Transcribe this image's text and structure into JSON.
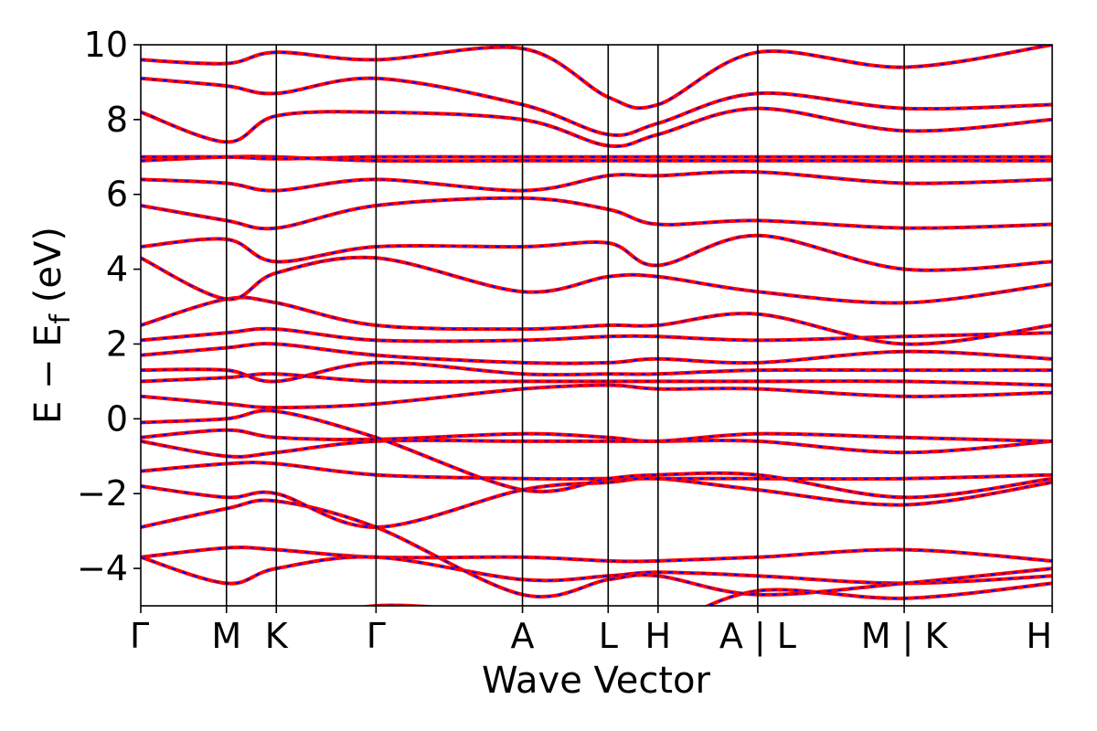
{
  "chart_data": {
    "type": "line",
    "title": "",
    "xlabel": "Wave Vector",
    "ylabel_main": "E − E",
    "ylabel_sub": "f",
    "ylabel_tail": " (eV)",
    "ylim": [
      -5,
      10
    ],
    "yticks": [
      {
        "value": 10,
        "label": "10"
      },
      {
        "value": 8,
        "label": "8"
      },
      {
        "value": 6,
        "label": "6"
      },
      {
        "value": 4,
        "label": "4"
      },
      {
        "value": 2,
        "label": "2"
      },
      {
        "value": 0,
        "label": "0"
      },
      {
        "value": -2,
        "label": "−2"
      },
      {
        "value": -4,
        "label": "−4"
      }
    ],
    "kpath": [
      "Γ",
      "M",
      "K",
      "Γ",
      "A",
      "L",
      "H",
      "A | L",
      "M | K",
      "H"
    ],
    "kpath_breaks": [
      7,
      8
    ],
    "segment_lengths": [
      0.55,
      0.32,
      0.64,
      0.94,
      0.55,
      0.32,
      0.64,
      0.94,
      0.95
    ],
    "grid": false,
    "legend": "none",
    "colors": {
      "primary": "#ff0000",
      "secondary": "#0000ff",
      "axis": "#000000"
    },
    "series": [
      {
        "values": [
          [
            0,
            -5.9
          ],
          [
            1,
            -5.6
          ],
          [
            2,
            -5.7
          ],
          [
            3,
            -5.0
          ],
          [
            4,
            -5.3
          ],
          [
            5,
            -5.8
          ],
          [
            6,
            -5.6
          ],
          [
            7,
            -4.6
          ],
          [
            8,
            -4.8
          ],
          [
            9,
            -4.4
          ]
        ]
      },
      {
        "values": [
          [
            0,
            -3.7
          ],
          [
            1,
            -3.45
          ],
          [
            2,
            -3.5
          ],
          [
            3,
            -3.7
          ],
          [
            4,
            -3.7
          ],
          [
            5,
            -3.8
          ],
          [
            6,
            -3.8
          ],
          [
            7,
            -3.7
          ],
          [
            8,
            -3.5
          ],
          [
            9,
            -3.8
          ]
        ]
      },
      {
        "values": [
          [
            0,
            -3.7
          ],
          [
            1,
            -4.4
          ],
          [
            2,
            -4.0
          ],
          [
            3,
            -3.7
          ],
          [
            4,
            -4.3
          ],
          [
            5,
            -4.2
          ],
          [
            6,
            -4.1
          ],
          [
            7,
            -4.2
          ],
          [
            8,
            -4.4
          ],
          [
            9,
            -4.2
          ]
        ]
      },
      {
        "values": [
          [
            0,
            -2.9
          ],
          [
            1,
            -2.4
          ],
          [
            2,
            -2.2
          ],
          [
            3,
            -2.9
          ],
          [
            4,
            -4.7
          ],
          [
            5,
            -4.3
          ],
          [
            6,
            -4.2
          ],
          [
            7,
            -4.7
          ],
          [
            8,
            -4.4
          ],
          [
            9,
            -4.0
          ]
        ]
      },
      {
        "values": [
          [
            0,
            -1.8
          ],
          [
            1,
            -2.1
          ],
          [
            2,
            -2.0
          ],
          [
            3,
            -2.9
          ],
          [
            4,
            -1.9
          ],
          [
            5,
            -1.7
          ],
          [
            6,
            -1.6
          ],
          [
            7,
            -1.9
          ],
          [
            8,
            -2.3
          ],
          [
            9,
            -1.7
          ]
        ]
      },
      {
        "values": [
          [
            0,
            -1.4
          ],
          [
            1,
            -1.2
          ],
          [
            2,
            -1.2
          ],
          [
            3,
            -1.5
          ],
          [
            4,
            -1.6
          ],
          [
            5,
            -1.6
          ],
          [
            6,
            -1.6
          ],
          [
            7,
            -1.6
          ],
          [
            8,
            -1.6
          ],
          [
            9,
            -1.5
          ]
        ]
      },
      {
        "values": [
          [
            0,
            -0.6
          ],
          [
            1,
            -1.0
          ],
          [
            2,
            -0.9
          ],
          [
            3,
            -0.6
          ],
          [
            4,
            -0.6
          ],
          [
            5,
            -0.6
          ],
          [
            6,
            -0.6
          ],
          [
            7,
            -0.6
          ],
          [
            8,
            -0.9
          ],
          [
            9,
            -0.6
          ]
        ]
      },
      {
        "values": [
          [
            0,
            -0.5
          ],
          [
            1,
            -0.3
          ],
          [
            2,
            -0.5
          ],
          [
            3,
            -0.55
          ],
          [
            4,
            -0.4
          ],
          [
            5,
            -0.5
          ],
          [
            6,
            -0.6
          ],
          [
            7,
            -0.4
          ],
          [
            8,
            -0.5
          ],
          [
            9,
            -0.6
          ]
        ]
      },
      {
        "values": [
          [
            0,
            -0.1
          ],
          [
            1,
            0.0
          ],
          [
            2,
            0.2
          ],
          [
            3,
            -0.5
          ],
          [
            4,
            -1.9
          ],
          [
            5,
            -1.6
          ],
          [
            6,
            -1.5
          ],
          [
            7,
            -1.5
          ],
          [
            8,
            -2.1
          ],
          [
            9,
            -1.6
          ]
        ]
      },
      {
        "values": [
          [
            0,
            0.6
          ],
          [
            1,
            0.4
          ],
          [
            2,
            0.3
          ],
          [
            3,
            0.4
          ],
          [
            4,
            0.8
          ],
          [
            5,
            0.9
          ],
          [
            6,
            0.8
          ],
          [
            7,
            0.8
          ],
          [
            8,
            0.6
          ],
          [
            9,
            0.7
          ]
        ]
      },
      {
        "values": [
          [
            0,
            1.0
          ],
          [
            1,
            1.1
          ],
          [
            2,
            1.2
          ],
          [
            3,
            1.0
          ],
          [
            4,
            1.0
          ],
          [
            5,
            1.0
          ],
          [
            6,
            1.0
          ],
          [
            7,
            1.0
          ],
          [
            8,
            1.0
          ],
          [
            9,
            0.9
          ]
        ]
      },
      {
        "values": [
          [
            0,
            1.3
          ],
          [
            1,
            1.3
          ],
          [
            2,
            1.0
          ],
          [
            3,
            1.5
          ],
          [
            4,
            1.2
          ],
          [
            5,
            1.2
          ],
          [
            6,
            1.2
          ],
          [
            7,
            1.3
          ],
          [
            8,
            1.3
          ],
          [
            9,
            1.3
          ]
        ]
      },
      {
        "values": [
          [
            0,
            1.7
          ],
          [
            1,
            1.9
          ],
          [
            2,
            2.0
          ],
          [
            3,
            1.7
          ],
          [
            4,
            1.5
          ],
          [
            5,
            1.5
          ],
          [
            6,
            1.6
          ],
          [
            7,
            1.5
          ],
          [
            8,
            1.8
          ],
          [
            9,
            1.6
          ]
        ]
      },
      {
        "values": [
          [
            0,
            2.1
          ],
          [
            1,
            2.3
          ],
          [
            2,
            2.4
          ],
          [
            3,
            2.1
          ],
          [
            4,
            2.1
          ],
          [
            5,
            2.2
          ],
          [
            6,
            2.2
          ],
          [
            7,
            2.1
          ],
          [
            8,
            2.2
          ],
          [
            9,
            2.3
          ]
        ]
      },
      {
        "values": [
          [
            0,
            2.5
          ],
          [
            1,
            3.2
          ],
          [
            2,
            3.1
          ],
          [
            3,
            2.5
          ],
          [
            4,
            2.4
          ],
          [
            5,
            2.5
          ],
          [
            6,
            2.5
          ],
          [
            7,
            2.8
          ],
          [
            8,
            2.0
          ],
          [
            9,
            2.5
          ]
        ]
      },
      {
        "values": [
          [
            0,
            4.3
          ],
          [
            1,
            3.2
          ],
          [
            2,
            3.9
          ],
          [
            3,
            4.3
          ],
          [
            4,
            3.4
          ],
          [
            5,
            3.8
          ],
          [
            6,
            3.8
          ],
          [
            7,
            3.4
          ],
          [
            8,
            3.1
          ],
          [
            9,
            3.6
          ]
        ]
      },
      {
        "values": [
          [
            0,
            4.6
          ],
          [
            1,
            4.8
          ],
          [
            2,
            4.2
          ],
          [
            3,
            4.6
          ],
          [
            4,
            4.6
          ],
          [
            5,
            4.7
          ],
          [
            6,
            4.1
          ],
          [
            7,
            4.9
          ],
          [
            8,
            4.0
          ],
          [
            9,
            4.2
          ]
        ]
      },
      {
        "values": [
          [
            0,
            5.7
          ],
          [
            1,
            5.3
          ],
          [
            2,
            5.1
          ],
          [
            3,
            5.7
          ],
          [
            4,
            5.9
          ],
          [
            5,
            5.6
          ],
          [
            6,
            5.2
          ],
          [
            7,
            5.3
          ],
          [
            8,
            5.1
          ],
          [
            9,
            5.2
          ]
        ]
      },
      {
        "values": [
          [
            0,
            6.4
          ],
          [
            1,
            6.3
          ],
          [
            2,
            6.1
          ],
          [
            3,
            6.4
          ],
          [
            4,
            6.1
          ],
          [
            5,
            6.5
          ],
          [
            6,
            6.5
          ],
          [
            7,
            6.6
          ],
          [
            8,
            6.3
          ],
          [
            9,
            6.4
          ]
        ]
      },
      {
        "values": [
          [
            0,
            6.9
          ],
          [
            1,
            7.0
          ],
          [
            2,
            7.0
          ],
          [
            3,
            6.9
          ],
          [
            4,
            6.9
          ],
          [
            5,
            6.9
          ],
          [
            6,
            6.9
          ],
          [
            7,
            6.9
          ],
          [
            8,
            6.9
          ],
          [
            9,
            6.9
          ]
        ]
      },
      {
        "values": [
          [
            0,
            7.0
          ],
          [
            1,
            7.0
          ],
          [
            2,
            6.95
          ],
          [
            3,
            7.0
          ],
          [
            4,
            7.0
          ],
          [
            5,
            7.0
          ],
          [
            6,
            7.0
          ],
          [
            7,
            7.0
          ],
          [
            8,
            7.0
          ],
          [
            9,
            7.0
          ]
        ]
      },
      {
        "values": [
          [
            0,
            8.2
          ],
          [
            1,
            7.4
          ],
          [
            2,
            8.1
          ],
          [
            3,
            8.2
          ],
          [
            4,
            8.0
          ],
          [
            5,
            7.3
          ],
          [
            6,
            7.6
          ],
          [
            7,
            8.3
          ],
          [
            8,
            7.7
          ],
          [
            9,
            8.0
          ]
        ]
      },
      {
        "values": [
          [
            0,
            9.1
          ],
          [
            1,
            8.9
          ],
          [
            2,
            8.7
          ],
          [
            3,
            9.1
          ],
          [
            4,
            8.4
          ],
          [
            5,
            7.6
          ],
          [
            6,
            7.9
          ],
          [
            7,
            8.7
          ],
          [
            8,
            8.3
          ],
          [
            9,
            8.4
          ]
        ]
      },
      {
        "values": [
          [
            0,
            9.6
          ],
          [
            1,
            9.5
          ],
          [
            2,
            9.8
          ],
          [
            3,
            9.6
          ],
          [
            4,
            9.9
          ],
          [
            5,
            8.6
          ],
          [
            6,
            8.4
          ],
          [
            7,
            9.8
          ],
          [
            8,
            9.4
          ],
          [
            9,
            10.0
          ]
        ]
      }
    ]
  }
}
